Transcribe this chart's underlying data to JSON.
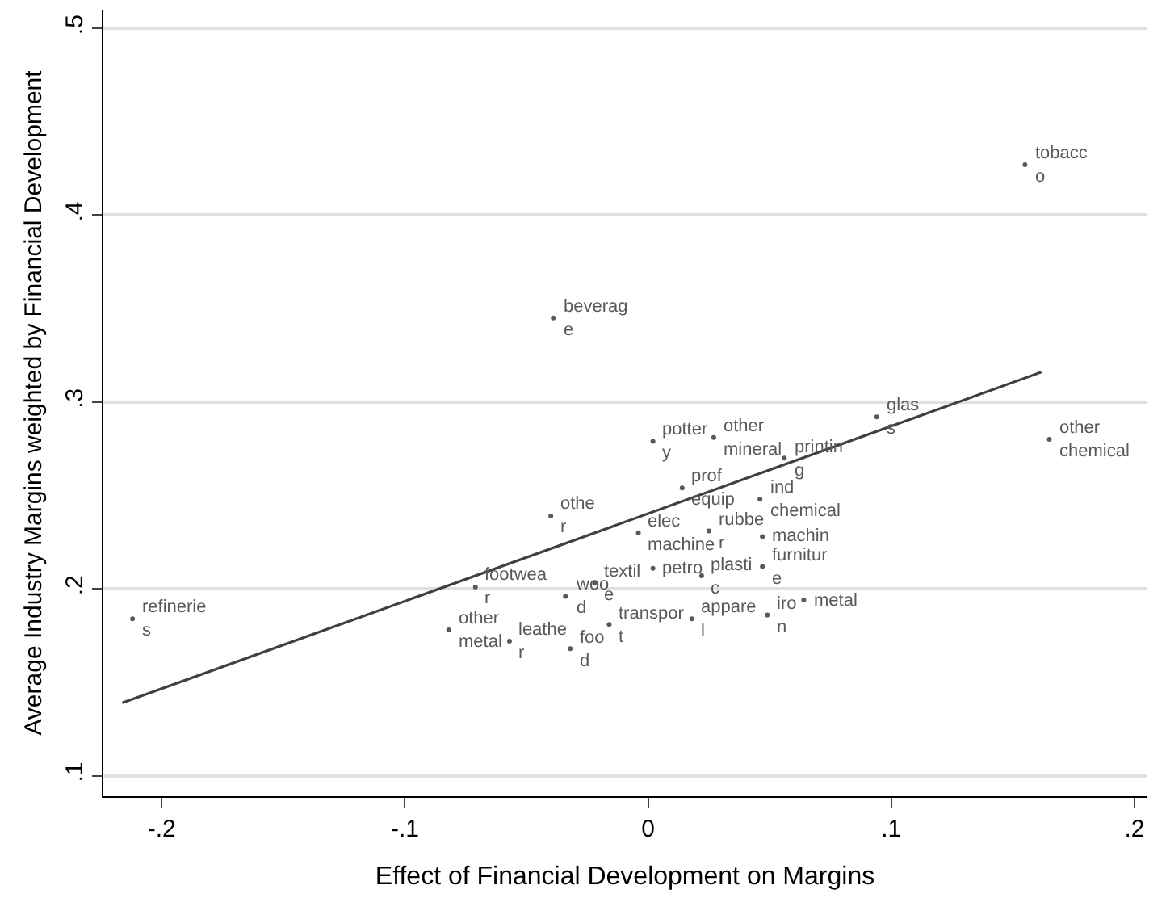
{
  "chart_data": {
    "type": "scatter",
    "xlabel": "Effect of Financial Development on Margins",
    "ylabel": "Average Industry Margins weighted by Financial Development",
    "xlim": [
      -0.224,
      0.205
    ],
    "ylim": [
      0.089,
      0.51
    ],
    "xticks": [
      {
        "value": -0.2,
        "label": "-.2"
      },
      {
        "value": -0.1,
        "label": "-.1"
      },
      0,
      {
        "value": 0.1,
        "label": ".1"
      },
      {
        "value": 0.2,
        "label": ".2"
      }
    ],
    "yticks": [
      {
        "value": 0.1,
        "label": ".1"
      },
      {
        "value": 0.2,
        "label": ".2"
      },
      {
        "value": 0.3,
        "label": ".3"
      },
      {
        "value": 0.4,
        "label": ".4"
      },
      {
        "value": 0.5,
        "label": ".5"
      }
    ],
    "grid": "y",
    "series": [
      {
        "color": "#595959",
        "marker": "circle",
        "x": [
          0.155,
          -0.039,
          0.094,
          0.165,
          0.056,
          0.002,
          0.027,
          0.014,
          0.046,
          -0.04,
          -0.004,
          0.025,
          0.022,
          0.047,
          0.047,
          0.064,
          0.002,
          0.018,
          0.049,
          -0.016,
          -0.071,
          -0.022,
          -0.034,
          -0.212,
          -0.082,
          -0.057,
          -0.032
        ],
        "values": [
          0.427,
          0.345,
          0.292,
          0.28,
          0.27,
          0.279,
          0.281,
          0.254,
          0.248,
          0.239,
          0.23,
          0.231,
          0.207,
          0.228,
          0.212,
          0.194,
          0.211,
          0.184,
          0.186,
          0.181,
          0.201,
          0.203,
          0.196,
          0.184,
          0.178,
          0.172,
          0.168
        ],
        "value_labels": [
          "tobacc\no",
          "beverag\ne",
          "glas\ns",
          "other\nchemical",
          "printin\ng",
          "potter\ny",
          "other\nmineral",
          "prof\nequip",
          "ind\nchemical",
          "othe\nr",
          "elec\nmachine",
          "rubbe\nr",
          "plasti\nc",
          "machin",
          "furnitur\ne",
          "metal",
          "petro",
          "appare\nl",
          "iro\nn",
          "transpor\nt",
          "footwea\nr",
          "textil\ne",
          "woo\nd",
          "refinerie\ns",
          "other\nmetal",
          "leathe\nr",
          "foo\nd"
        ]
      },
      {
        "type": "line",
        "color": "#404040",
        "x": [
          -0.2162,
          0.1617
        ],
        "values": [
          0.139,
          0.316
        ]
      }
    ]
  }
}
